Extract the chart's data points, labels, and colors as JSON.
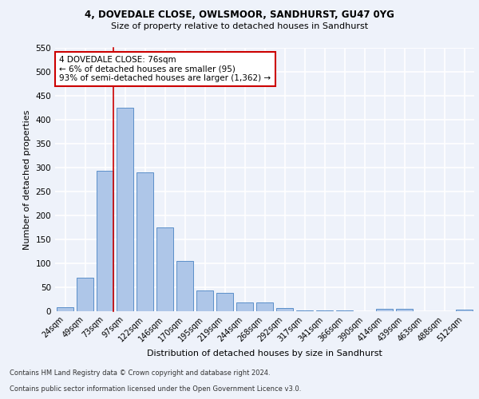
{
  "title_line1": "4, DOVEDALE CLOSE, OWLSMOOR, SANDHURST, GU47 0YG",
  "title_line2": "Size of property relative to detached houses in Sandhurst",
  "xlabel": "Distribution of detached houses by size in Sandhurst",
  "ylabel": "Number of detached properties",
  "categories": [
    "24sqm",
    "49sqm",
    "73sqm",
    "97sqm",
    "122sqm",
    "146sqm",
    "170sqm",
    "195sqm",
    "219sqm",
    "244sqm",
    "268sqm",
    "292sqm",
    "317sqm",
    "341sqm",
    "366sqm",
    "390sqm",
    "414sqm",
    "439sqm",
    "463sqm",
    "488sqm",
    "512sqm"
  ],
  "values": [
    8,
    70,
    293,
    425,
    290,
    175,
    105,
    43,
    38,
    18,
    18,
    7,
    2,
    1,
    1,
    0,
    5,
    5,
    0,
    0,
    3
  ],
  "bar_color": "#aec6e8",
  "bar_edge_color": "#5b8fc9",
  "background_color": "#eef2fa",
  "grid_color": "#ffffff",
  "annotation_box_text_line1": "4 DOVEDALE CLOSE: 76sqm",
  "annotation_box_text_line2": "← 6% of detached houses are smaller (95)",
  "annotation_box_text_line3": "93% of semi-detached houses are larger (1,362) →",
  "annotation_box_color": "#ffffff",
  "annotation_box_edge_color": "#cc0000",
  "ylim": [
    0,
    550
  ],
  "yticks": [
    0,
    50,
    100,
    150,
    200,
    250,
    300,
    350,
    400,
    450,
    500,
    550
  ],
  "footnote1": "Contains HM Land Registry data © Crown copyright and database right 2024.",
  "footnote2": "Contains public sector information licensed under the Open Government Licence v3.0.",
  "property_line_category_index": 2
}
